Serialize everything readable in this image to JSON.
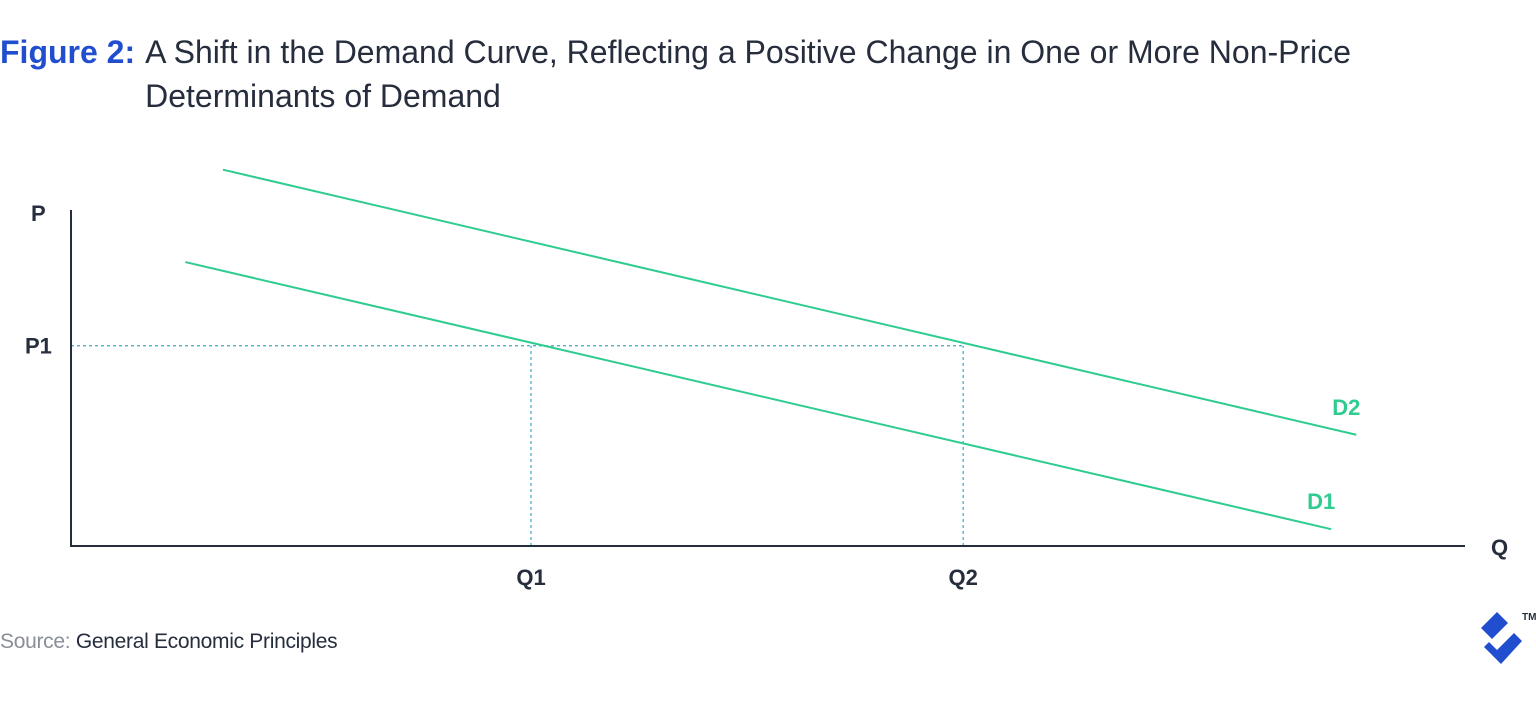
{
  "figure": {
    "label": "Figure 2:",
    "title": "A Shift in the Demand Curve, Reflecting a Positive Change in One or More Non-Price Determinants of Demand"
  },
  "source": {
    "prefix": "Source:",
    "text": "General Economic Principles"
  },
  "logo": {
    "icon": "toptal-logo-icon",
    "trademark": "TM"
  },
  "colors": {
    "accent": "#204ecf",
    "curve": "#2ecc8f",
    "guide": "#3fa6c8",
    "axis": "#262d3d",
    "text": "#262d3d",
    "source_prefix": "#8a8e99"
  },
  "chart_data": {
    "type": "line",
    "xlabel": "Q",
    "ylabel": "P",
    "xlim": [
      0,
      100
    ],
    "ylim": [
      0,
      100
    ],
    "x_ticks": [
      {
        "label": "Q1",
        "value": 33.0
      },
      {
        "label": "Q2",
        "value": 64.0
      }
    ],
    "y_ticks": [
      {
        "label": "P1",
        "value": 59.6
      }
    ],
    "series": [
      {
        "name": "D1",
        "points": [
          [
            8.2,
            84.5
          ],
          [
            90.4,
            5.0
          ]
        ]
      },
      {
        "name": "D2",
        "points": [
          [
            10.9,
            112.0
          ],
          [
            92.2,
            33.1
          ]
        ]
      }
    ],
    "guides": [
      {
        "from": [
          0,
          59.6
        ],
        "to": [
          64.0,
          59.6
        ]
      },
      {
        "from": [
          33.0,
          0
        ],
        "to": [
          33.0,
          59.6
        ]
      },
      {
        "from": [
          64.0,
          0
        ],
        "to": [
          64.0,
          59.6
        ]
      }
    ],
    "grid": false,
    "legend": "none"
  }
}
